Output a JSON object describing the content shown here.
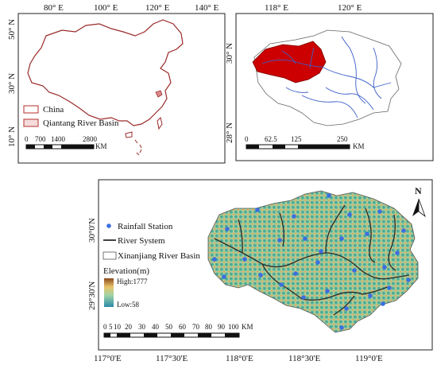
{
  "panel_china": {
    "top_ticks": [
      "80° E",
      "100° E",
      "120° E",
      "140° E"
    ],
    "left_ticks": [
      "50° N",
      "30° N",
      "10° N"
    ],
    "legend": [
      {
        "label": "China",
        "color": "#c0504d"
      },
      {
        "label": "Qiantang River Basin",
        "color": "#c0504d"
      }
    ],
    "scale_labels": [
      "0",
      "700",
      "1400",
      "2800"
    ],
    "scale_unit": "KM"
  },
  "panel_basin": {
    "top_ticks": [
      "118° E",
      "120° E"
    ],
    "left_ticks": [
      "30° N",
      "28° N"
    ],
    "scale_labels": [
      "0",
      "62.5",
      "125",
      "250"
    ],
    "scale_unit": "KM",
    "basin_color": "#cc0000",
    "river_color": "#3c5fc8"
  },
  "panel_dem": {
    "bottom_ticks": [
      "117°0'E",
      "117°30'E",
      "118°0'E",
      "118°30'E",
      "119°0'E"
    ],
    "left_ticks": [
      "30°0'N",
      "29°30'N"
    ],
    "north_label": "N",
    "legend": {
      "rainfall_station": "Rainfall Station",
      "river_system": "River System",
      "basin": "Xinanjiang River Basin",
      "elevation_title": "Elevation(m)",
      "high": "High:1777",
      "low": "Low:58"
    },
    "scale_labels": [
      "0",
      "5",
      "10",
      "20",
      "30",
      "40",
      "50",
      "60",
      "70",
      "80",
      "90",
      "100"
    ],
    "scale_unit": "KM",
    "station_color": "#3b6fe0"
  }
}
